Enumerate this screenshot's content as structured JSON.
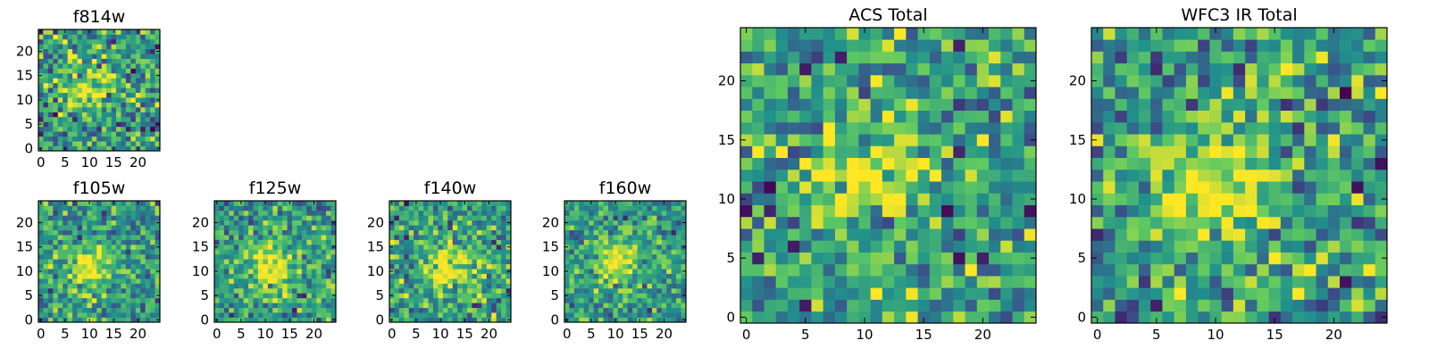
{
  "colormap": [
    "#440154",
    "#3b528b",
    "#21918c",
    "#5ec962",
    "#fde725"
  ],
  "chart_data": [
    {
      "type": "heatmap",
      "title": "f814w",
      "xlim": [
        -0.5,
        24.5
      ],
      "ylim": [
        -0.5,
        24.5
      ],
      "xticks": [
        "0",
        "5",
        "10",
        "15",
        "20"
      ],
      "yticks": [
        "0",
        "5",
        "10",
        "15",
        "20"
      ],
      "grid_size": 25,
      "source_peak": [
        10,
        12
      ],
      "peak_width": 3.0,
      "noise": 0.3,
      "seed": 11
    },
    {
      "type": "heatmap",
      "title": "f105w",
      "xlim": [
        -0.5,
        24.5
      ],
      "ylim": [
        -0.5,
        24.5
      ],
      "xticks": [
        "0",
        "5",
        "10",
        "15",
        "20"
      ],
      "yticks": [
        "0",
        "5",
        "10",
        "15",
        "20"
      ],
      "grid_size": 25,
      "source_peak": [
        10,
        11
      ],
      "peak_width": 3.0,
      "noise": 0.25,
      "seed": 23
    },
    {
      "type": "heatmap",
      "title": "f125w",
      "xlim": [
        -0.5,
        24.5
      ],
      "ylim": [
        -0.5,
        24.5
      ],
      "xticks": [
        "0",
        "5",
        "10",
        "15",
        "20"
      ],
      "yticks": [
        "0",
        "5",
        "10",
        "15",
        "20"
      ],
      "grid_size": 25,
      "source_peak": [
        11,
        11
      ],
      "peak_width": 3.5,
      "noise": 0.25,
      "seed": 37
    },
    {
      "type": "heatmap",
      "title": "f140w",
      "xlim": [
        -0.5,
        24.5
      ],
      "ylim": [
        -0.5,
        24.5
      ],
      "xticks": [
        "0",
        "5",
        "10",
        "15",
        "20"
      ],
      "yticks": [
        "0",
        "5",
        "10",
        "15",
        "20"
      ],
      "grid_size": 25,
      "source_peak": [
        12,
        11
      ],
      "peak_width": 3.5,
      "noise": 0.28,
      "seed": 41
    },
    {
      "type": "heatmap",
      "title": "f160w",
      "xlim": [
        -0.5,
        24.5
      ],
      "ylim": [
        -0.5,
        24.5
      ],
      "xticks": [
        "0",
        "5",
        "10",
        "15",
        "20"
      ],
      "yticks": [
        "0",
        "5",
        "10",
        "15",
        "20"
      ],
      "grid_size": 25,
      "source_peak": [
        10,
        12
      ],
      "peak_width": 3.0,
      "noise": 0.22,
      "seed": 53
    },
    {
      "type": "heatmap",
      "title": "ACS Total",
      "xlim": [
        -0.5,
        24.5
      ],
      "ylim": [
        -0.5,
        24.5
      ],
      "xticks": [
        "0",
        "5",
        "10",
        "15",
        "20"
      ],
      "yticks": [
        "0",
        "5",
        "10",
        "15",
        "20"
      ],
      "grid_size": 25,
      "source_peak": [
        10,
        12
      ],
      "peak_width": 3.0,
      "noise": 0.3,
      "seed": 67
    },
    {
      "type": "heatmap",
      "title": "WFC3 IR Total",
      "xlim": [
        -0.5,
        24.5
      ],
      "ylim": [
        -0.5,
        24.5
      ],
      "xticks": [
        "0",
        "5",
        "10",
        "15",
        "20"
      ],
      "yticks": [
        "0",
        "5",
        "10",
        "15",
        "20"
      ],
      "grid_size": 25,
      "source_peak": [
        10,
        11
      ],
      "peak_width": 3.5,
      "noise": 0.3,
      "seed": 79
    }
  ]
}
